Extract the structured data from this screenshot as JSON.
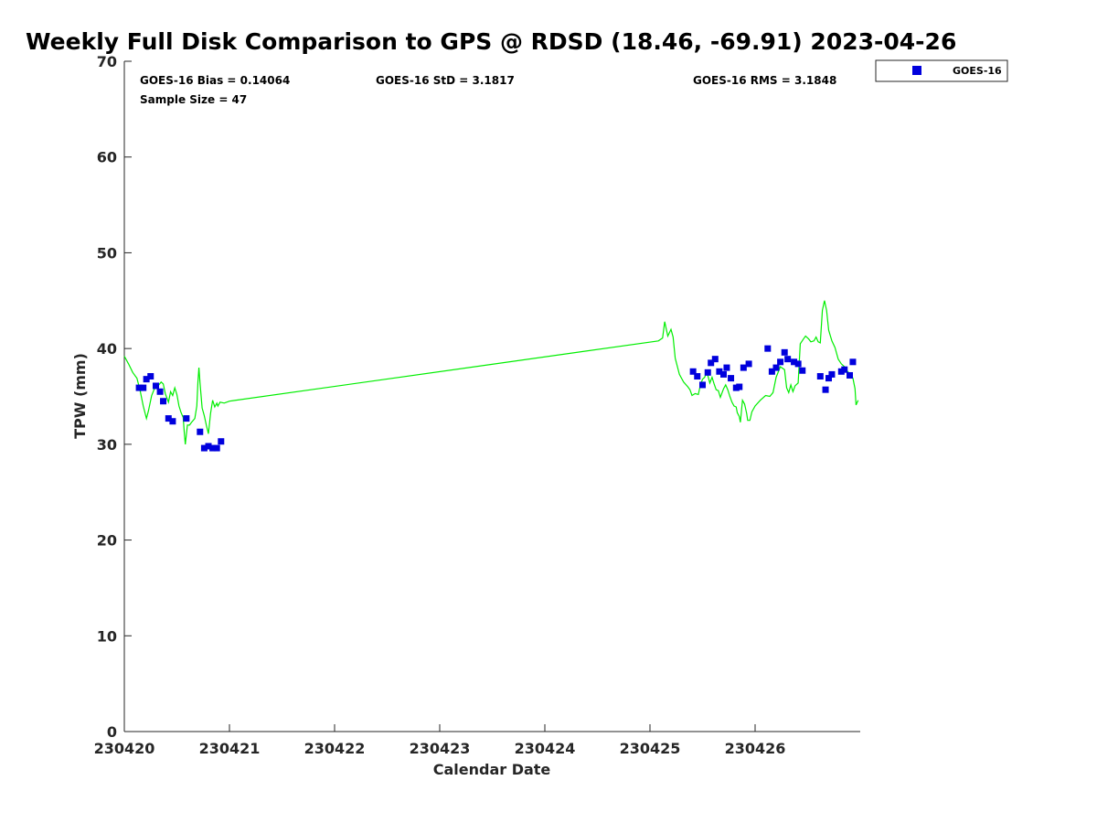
{
  "chart_data": {
    "type": "scatter",
    "title": "Weekly Full Disk Comparison to GPS @ RDSD (18.46, -69.91) 2023-04-26",
    "xlabel": "Calendar Date",
    "ylabel": "TPW (mm)",
    "x_axis": "days since 230420 (tick labels are YYMMDD dates)",
    "xlim": [
      0,
      7
    ],
    "ylim": [
      0,
      70
    ],
    "x_ticks": [
      0,
      1,
      2,
      3,
      4,
      5,
      6
    ],
    "x_tick_labels": [
      "230420",
      "230421",
      "230422",
      "230423",
      "230424",
      "230425",
      "230426"
    ],
    "y_ticks": [
      0,
      10,
      20,
      30,
      40,
      50,
      60,
      70
    ],
    "y_tick_labels": [
      "0",
      "10",
      "20",
      "30",
      "40",
      "50",
      "60",
      "70"
    ],
    "grid": false,
    "legend_position": "outside-top-right",
    "stats": {
      "bias": "GOES-16 Bias = 0.14064",
      "std": "GOES-16 StD = 3.1817",
      "rms": "GOES-16 RMS = 3.1848",
      "sample": "Sample Size = 47"
    },
    "series": [
      {
        "name": "GOES-16",
        "kind": "scatter",
        "marker": "square",
        "color": "#0000dd",
        "points": [
          [
            0.14,
            35.9
          ],
          [
            0.18,
            35.9
          ],
          [
            0.21,
            36.8
          ],
          [
            0.25,
            37.1
          ],
          [
            0.3,
            36.1
          ],
          [
            0.34,
            35.5
          ],
          [
            0.37,
            34.5
          ],
          [
            0.42,
            32.7
          ],
          [
            0.46,
            32.4
          ],
          [
            0.59,
            32.7
          ],
          [
            0.72,
            31.3
          ],
          [
            0.76,
            29.6
          ],
          [
            0.8,
            29.8
          ],
          [
            0.84,
            29.6
          ],
          [
            0.88,
            29.6
          ],
          [
            0.92,
            30.3
          ],
          [
            5.41,
            37.6
          ],
          [
            5.45,
            37.1
          ],
          [
            5.5,
            36.2
          ],
          [
            5.55,
            37.5
          ],
          [
            5.58,
            38.5
          ],
          [
            5.62,
            38.9
          ],
          [
            5.66,
            37.6
          ],
          [
            5.7,
            37.3
          ],
          [
            5.73,
            38.0
          ],
          [
            5.77,
            36.9
          ],
          [
            5.82,
            35.9
          ],
          [
            5.85,
            36.0
          ],
          [
            5.89,
            38.0
          ],
          [
            5.94,
            38.4
          ],
          [
            6.12,
            40.0
          ],
          [
            6.16,
            37.6
          ],
          [
            6.2,
            38.0
          ],
          [
            6.24,
            38.6
          ],
          [
            6.28,
            39.6
          ],
          [
            6.31,
            38.9
          ],
          [
            6.37,
            38.6
          ],
          [
            6.41,
            38.4
          ],
          [
            6.45,
            37.7
          ],
          [
            6.62,
            37.1
          ],
          [
            6.67,
            35.7
          ],
          [
            6.7,
            36.9
          ],
          [
            6.73,
            37.3
          ],
          [
            6.82,
            37.6
          ],
          [
            6.85,
            37.8
          ],
          [
            6.9,
            37.2
          ],
          [
            6.93,
            38.6
          ]
        ]
      },
      {
        "name": "",
        "kind": "line",
        "color": "#00ee00",
        "points": [
          [
            0.0,
            39.2
          ],
          [
            0.04,
            38.4
          ],
          [
            0.08,
            37.5
          ],
          [
            0.12,
            36.9
          ],
          [
            0.15,
            35.6
          ],
          [
            0.18,
            34.0
          ],
          [
            0.21,
            32.7
          ],
          [
            0.23,
            33.5
          ],
          [
            0.26,
            35.1
          ],
          [
            0.29,
            35.9
          ],
          [
            0.32,
            36.1
          ],
          [
            0.35,
            36.5
          ],
          [
            0.37,
            36.3
          ],
          [
            0.39,
            35.3
          ],
          [
            0.42,
            34.4
          ],
          [
            0.44,
            35.5
          ],
          [
            0.46,
            35.1
          ],
          [
            0.48,
            35.9
          ],
          [
            0.5,
            35.2
          ],
          [
            0.52,
            34.0
          ],
          [
            0.54,
            33.3
          ],
          [
            0.56,
            32.8
          ],
          [
            0.57,
            31.2
          ],
          [
            0.58,
            30.0
          ],
          [
            0.6,
            32.0
          ],
          [
            0.62,
            32.0
          ],
          [
            0.64,
            32.3
          ],
          [
            0.67,
            32.7
          ],
          [
            0.69,
            34.0
          ],
          [
            0.7,
            36.5
          ],
          [
            0.71,
            38.0
          ],
          [
            0.72,
            36.4
          ],
          [
            0.74,
            33.8
          ],
          [
            0.76,
            33.0
          ],
          [
            0.78,
            32.0
          ],
          [
            0.8,
            31.1
          ],
          [
            0.82,
            33.2
          ],
          [
            0.84,
            34.6
          ],
          [
            0.86,
            33.9
          ],
          [
            0.88,
            34.3
          ],
          [
            0.89,
            34.0
          ],
          [
            0.91,
            34.4
          ],
          [
            0.95,
            34.3
          ],
          [
            1.0,
            34.5
          ],
          [
            5.08,
            40.8
          ],
          [
            5.12,
            41.1
          ],
          [
            5.14,
            42.8
          ],
          [
            5.17,
            41.3
          ],
          [
            5.2,
            42.0
          ],
          [
            5.22,
            41.2
          ],
          [
            5.24,
            39.0
          ],
          [
            5.28,
            37.3
          ],
          [
            5.32,
            36.5
          ],
          [
            5.36,
            36.0
          ],
          [
            5.38,
            35.7
          ],
          [
            5.4,
            35.1
          ],
          [
            5.43,
            35.3
          ],
          [
            5.46,
            35.2
          ],
          [
            5.48,
            36.2
          ],
          [
            5.5,
            36.8
          ],
          [
            5.52,
            37.0
          ],
          [
            5.54,
            37.6
          ],
          [
            5.57,
            36.4
          ],
          [
            5.59,
            37.0
          ],
          [
            5.61,
            36.3
          ],
          [
            5.63,
            35.7
          ],
          [
            5.65,
            35.6
          ],
          [
            5.67,
            34.9
          ],
          [
            5.7,
            35.8
          ],
          [
            5.72,
            36.2
          ],
          [
            5.74,
            35.7
          ],
          [
            5.76,
            35.0
          ],
          [
            5.78,
            34.4
          ],
          [
            5.8,
            34.0
          ],
          [
            5.82,
            33.9
          ],
          [
            5.83,
            33.3
          ],
          [
            5.85,
            32.9
          ],
          [
            5.86,
            32.3
          ],
          [
            5.88,
            34.6
          ],
          [
            5.9,
            34.2
          ],
          [
            5.92,
            33.2
          ],
          [
            5.93,
            32.5
          ],
          [
            5.95,
            32.5
          ],
          [
            5.97,
            33.4
          ],
          [
            6.0,
            34.0
          ],
          [
            6.05,
            34.6
          ],
          [
            6.1,
            35.1
          ],
          [
            6.14,
            35.0
          ],
          [
            6.17,
            35.4
          ],
          [
            6.2,
            37.0
          ],
          [
            6.24,
            38.1
          ],
          [
            6.28,
            37.8
          ],
          [
            6.3,
            35.9
          ],
          [
            6.32,
            35.4
          ],
          [
            6.34,
            36.2
          ],
          [
            6.36,
            35.5
          ],
          [
            6.38,
            36.1
          ],
          [
            6.41,
            36.4
          ],
          [
            6.43,
            40.5
          ],
          [
            6.46,
            41.0
          ],
          [
            6.48,
            41.3
          ],
          [
            6.51,
            41.0
          ],
          [
            6.53,
            40.7
          ],
          [
            6.56,
            40.8
          ],
          [
            6.58,
            41.2
          ],
          [
            6.6,
            40.7
          ],
          [
            6.62,
            40.6
          ],
          [
            6.64,
            44.0
          ],
          [
            6.66,
            45.0
          ],
          [
            6.68,
            44.0
          ],
          [
            6.7,
            41.9
          ],
          [
            6.73,
            40.8
          ],
          [
            6.76,
            40.1
          ],
          [
            6.79,
            38.9
          ],
          [
            6.82,
            38.4
          ],
          [
            6.85,
            38.1
          ],
          [
            6.88,
            37.6
          ],
          [
            6.91,
            37.3
          ],
          [
            6.93,
            36.9
          ],
          [
            6.95,
            35.8
          ],
          [
            6.96,
            34.1
          ],
          [
            6.98,
            34.6
          ]
        ]
      }
    ]
  }
}
